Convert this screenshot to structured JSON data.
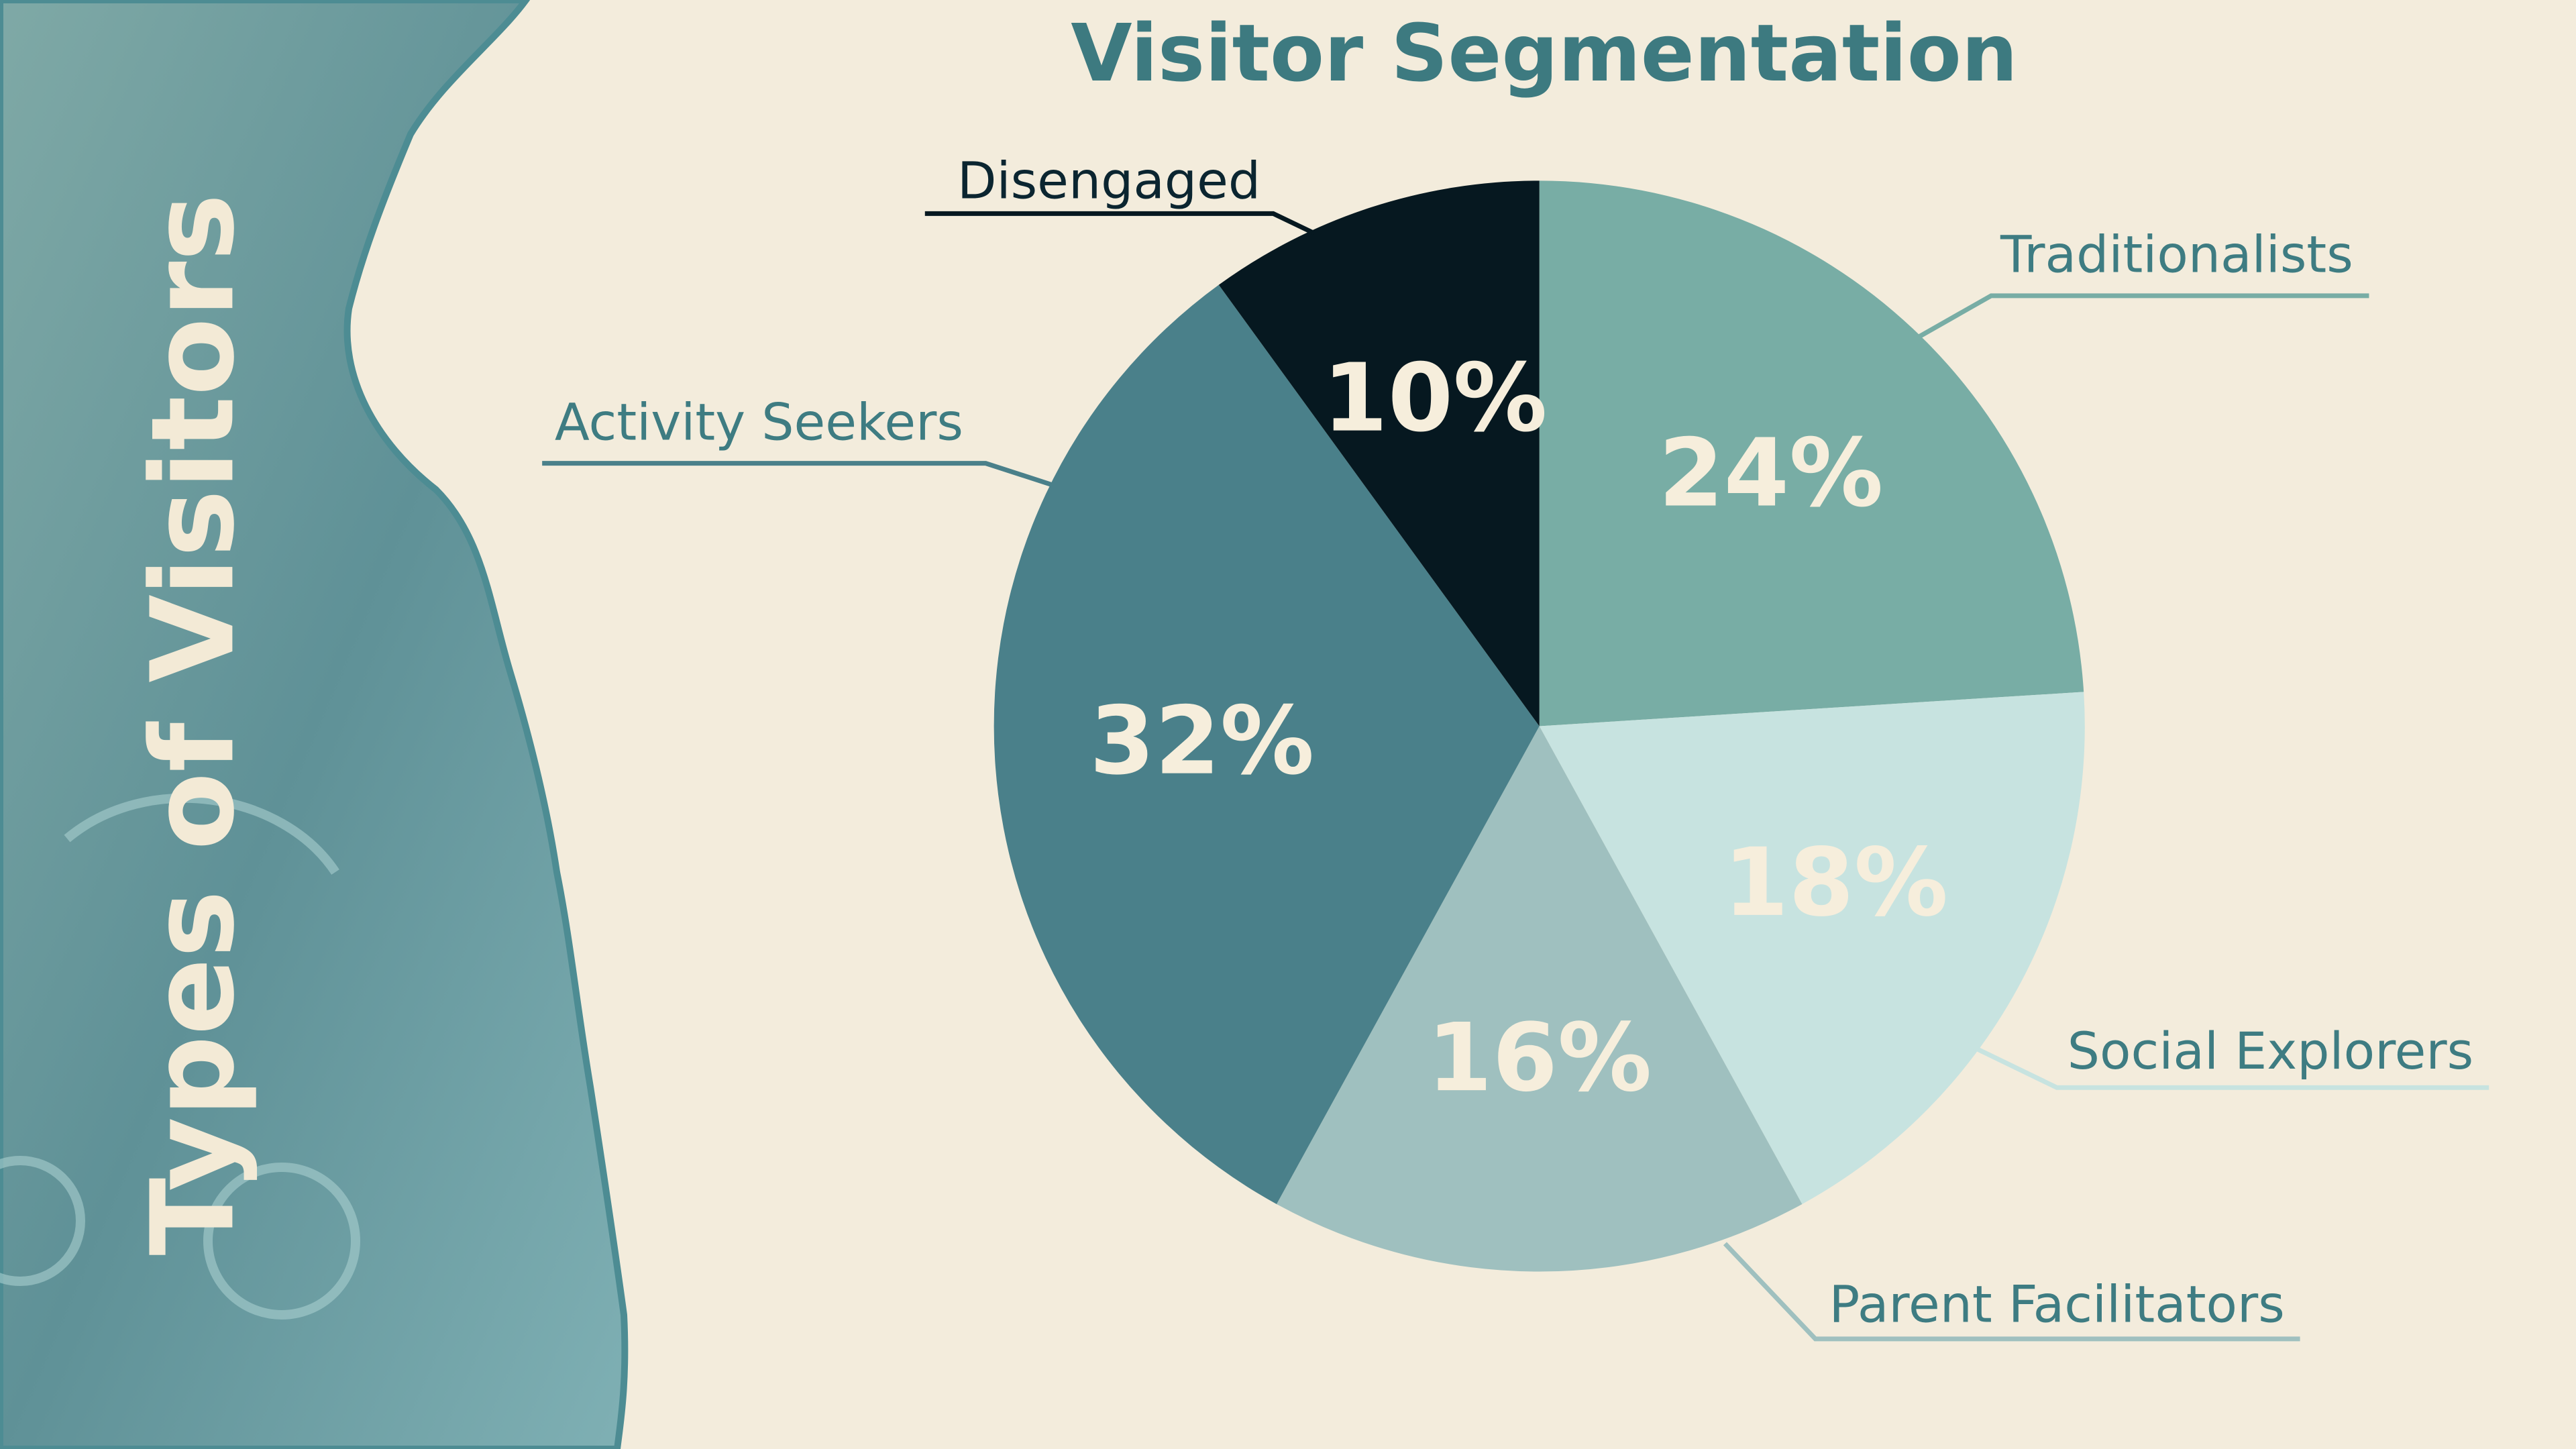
{
  "chart_data": {
    "type": "pie",
    "title": "Visitor Segmentation",
    "subtitle": "Types of Visitors",
    "categories": [
      "Traditionalists",
      "Social Explorers",
      "Parent Facilitators",
      "Activity Seekers",
      "Disengaged"
    ],
    "values": [
      24,
      18,
      16,
      32,
      10
    ],
    "value_labels": [
      "24%",
      "18%",
      "16%",
      "32%",
      "10%"
    ],
    "colors": [
      "#78ada5",
      "#c7e3e0",
      "#9fc0bf",
      "#4a808a",
      "#061820"
    ]
  }
}
